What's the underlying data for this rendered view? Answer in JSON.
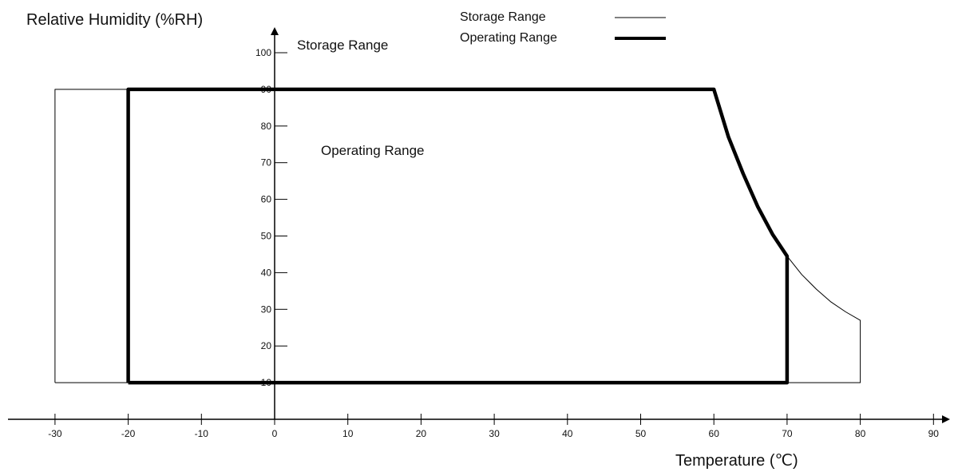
{
  "chart_data": {
    "type": "line",
    "ylabel": "Relative Humidity (%RH)",
    "xlabel": "Temperature (℃)",
    "xlim": [
      -30,
      90
    ],
    "ylim": [
      10,
      100
    ],
    "x_ticks": [
      "-30",
      "-20",
      "-10",
      "0",
      "10",
      "20",
      "30",
      "40",
      "50",
      "60",
      "70",
      "80",
      "90"
    ],
    "y_ticks": [
      "10",
      "20",
      "30",
      "40",
      "50",
      "60",
      "70",
      "80",
      "90",
      "100"
    ],
    "legend": [
      {
        "label": "Storage Range",
        "style": "thin"
      },
      {
        "label": "Operating Range",
        "style": "thick"
      }
    ],
    "annotations": {
      "storage": "Storage Range",
      "operating": "Operating Range"
    },
    "series": [
      {
        "name": "Storage Range",
        "style": "thin",
        "points": [
          [
            -30,
            10
          ],
          [
            -30,
            90
          ],
          [
            60,
            90
          ],
          [
            62,
            77
          ],
          [
            64,
            67
          ],
          [
            66,
            58
          ],
          [
            68,
            50.5
          ],
          [
            70,
            44.5
          ],
          [
            72,
            39.5
          ],
          [
            74,
            35.5
          ],
          [
            76,
            32
          ],
          [
            78,
            29.3
          ],
          [
            80,
            27
          ],
          [
            80,
            10
          ],
          [
            -30,
            10
          ]
        ]
      },
      {
        "name": "Operating Range",
        "style": "thick",
        "points": [
          [
            -20,
            10
          ],
          [
            -20,
            90
          ],
          [
            60,
            90
          ],
          [
            62,
            77
          ],
          [
            64,
            67
          ],
          [
            66,
            58
          ],
          [
            68,
            50.5
          ],
          [
            70,
            44.5
          ],
          [
            70,
            10
          ],
          [
            -20,
            10
          ]
        ]
      }
    ]
  }
}
